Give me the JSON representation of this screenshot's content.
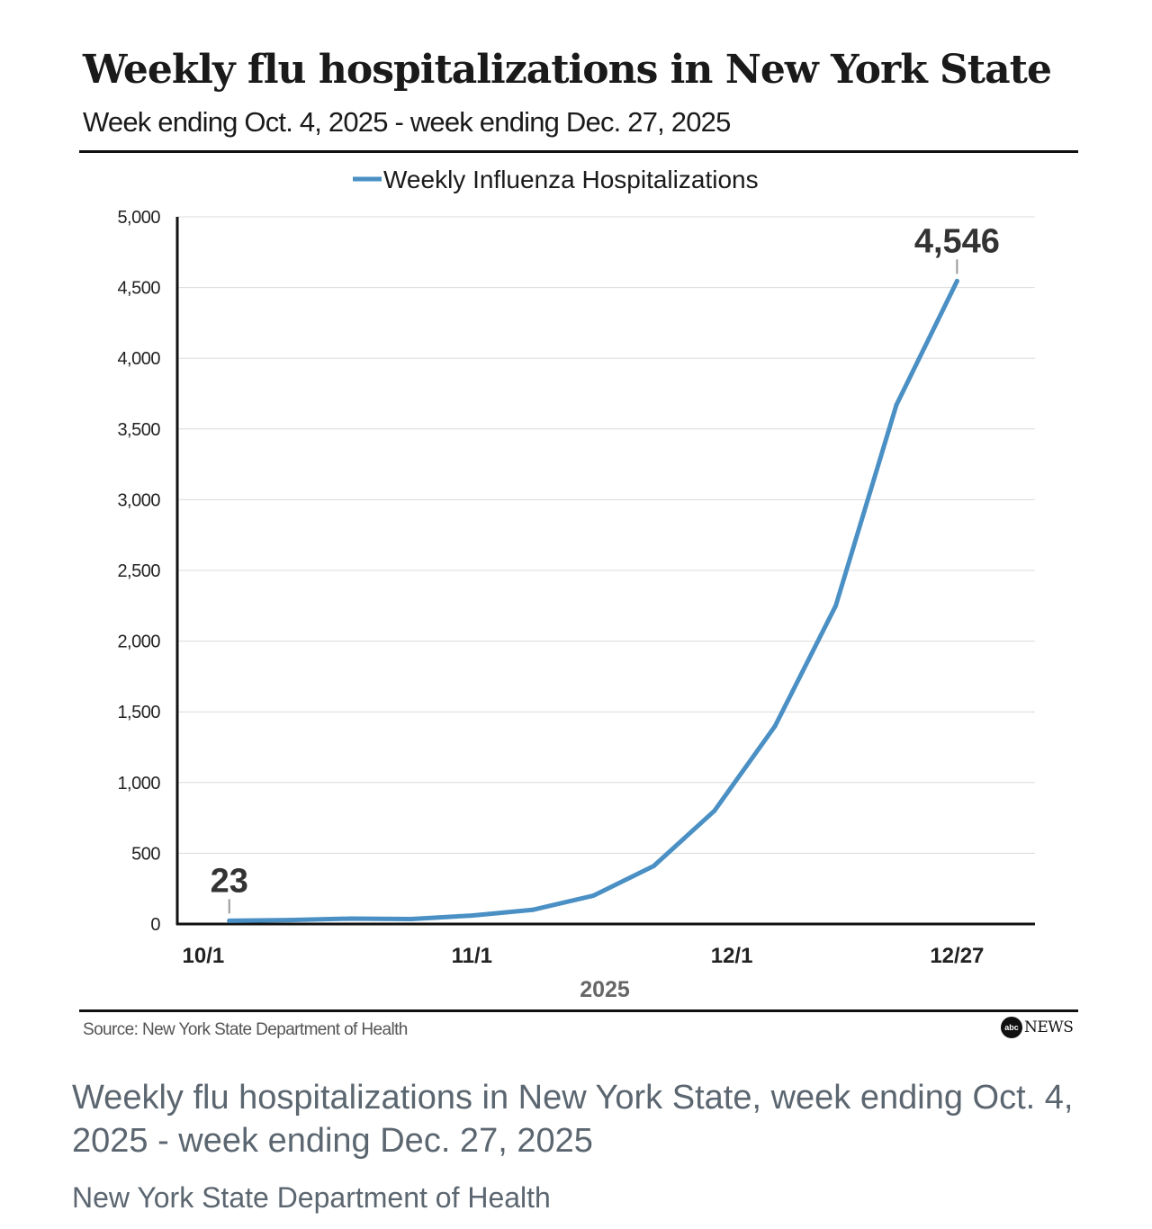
{
  "chart_data": {
    "type": "line",
    "title": "Weekly flu hospitalizations in New York State",
    "subtitle": "Week ending Oct. 4, 2025 - week ending Dec. 27, 2025",
    "legend": [
      "Weekly Influenza Hospitalizations"
    ],
    "legend_position": "top-center",
    "xlabel": "2025",
    "ylabel": "",
    "x_ticks": [
      {
        "label": "10/1",
        "day": 1
      },
      {
        "label": "11/1",
        "day": 32
      },
      {
        "label": "12/1",
        "day": 62
      },
      {
        "label": "12/27",
        "day": 88
      }
    ],
    "y_ticks": [
      0,
      500,
      1000,
      1500,
      2000,
      2500,
      3000,
      3500,
      4000,
      4500,
      5000
    ],
    "y_tick_labels": [
      "0",
      "500",
      "1,000",
      "1,500",
      "2,000",
      "2,500",
      "3,000",
      "3,500",
      "4,000",
      "4,500",
      "5,000"
    ],
    "ylim": [
      0,
      5000
    ],
    "xlim_days": [
      -2,
      97
    ],
    "grid": true,
    "series": [
      {
        "name": "Weekly Influenza Hospitalizations",
        "color": "#4a90c4",
        "x_days": [
          4,
          11,
          18,
          25,
          32,
          39,
          46,
          53,
          60,
          67,
          74,
          81,
          88
        ],
        "values": [
          23,
          28,
          38,
          35,
          60,
          100,
          200,
          410,
          800,
          1400,
          2250,
          3670,
          4546
        ]
      }
    ],
    "annotations": [
      {
        "label": "23",
        "point_index": 0
      },
      {
        "label": "4,546",
        "point_index": 12
      }
    ]
  },
  "source": "Source: New York State Department of Health",
  "brand": {
    "logo": "abc",
    "name": "NEWS"
  },
  "caption": {
    "text": "Weekly flu hospitalizations in New York State, week ending Oct. 4, 2025 - week ending Dec. 27, 2025",
    "source": "New York State Department of Health"
  }
}
